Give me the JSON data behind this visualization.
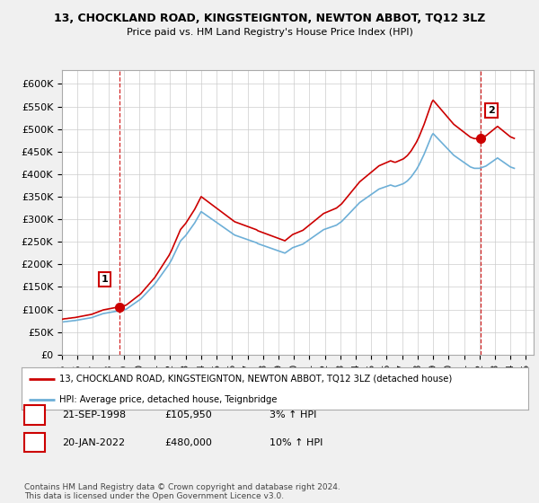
{
  "title": "13, CHOCKLAND ROAD, KINGSTEIGNTON, NEWTON ABBOT, TQ12 3LZ",
  "subtitle": "Price paid vs. HM Land Registry's House Price Index (HPI)",
  "xlim_start": 1995.0,
  "xlim_end": 2025.5,
  "ylim_min": 0,
  "ylim_max": 630000,
  "yticks": [
    0,
    50000,
    100000,
    150000,
    200000,
    250000,
    300000,
    350000,
    400000,
    450000,
    500000,
    550000,
    600000
  ],
  "ytick_labels": [
    "£0",
    "£50K",
    "£100K",
    "£150K",
    "£200K",
    "£250K",
    "£300K",
    "£350K",
    "£400K",
    "£450K",
    "£500K",
    "£550K",
    "£600K"
  ],
  "xticks": [
    1995,
    1996,
    1997,
    1998,
    1999,
    2000,
    2001,
    2002,
    2003,
    2004,
    2005,
    2006,
    2007,
    2008,
    2009,
    2010,
    2011,
    2012,
    2013,
    2014,
    2015,
    2016,
    2017,
    2018,
    2019,
    2020,
    2021,
    2022,
    2023,
    2024,
    2025
  ],
  "hpi_color": "#6dafd7",
  "price_color": "#cc0000",
  "marker_color": "#cc0000",
  "vline_color": "#cc0000",
  "sale1_x": 1998.72,
  "sale1_y": 105950,
  "sale1_label": "1",
  "sale2_x": 2022.05,
  "sale2_y": 480000,
  "sale2_label": "2",
  "legend_line1": "13, CHOCKLAND ROAD, KINGSTEIGNTON, NEWTON ABBOT, TQ12 3LZ (detached house)",
  "legend_line2": "HPI: Average price, detached house, Teignbridge",
  "table_row1_num": "1",
  "table_row1_date": "21-SEP-1998",
  "table_row1_price": "£105,950",
  "table_row1_hpi": "3% ↑ HPI",
  "table_row2_num": "2",
  "table_row2_date": "20-JAN-2022",
  "table_row2_price": "£480,000",
  "table_row2_hpi": "10% ↑ HPI",
  "footer": "Contains HM Land Registry data © Crown copyright and database right 2024.\nThis data is licensed under the Open Government Licence v3.0.",
  "bg_color": "#f0f0f0",
  "plot_bg_color": "#ffffff",
  "grid_color": "#cccccc"
}
